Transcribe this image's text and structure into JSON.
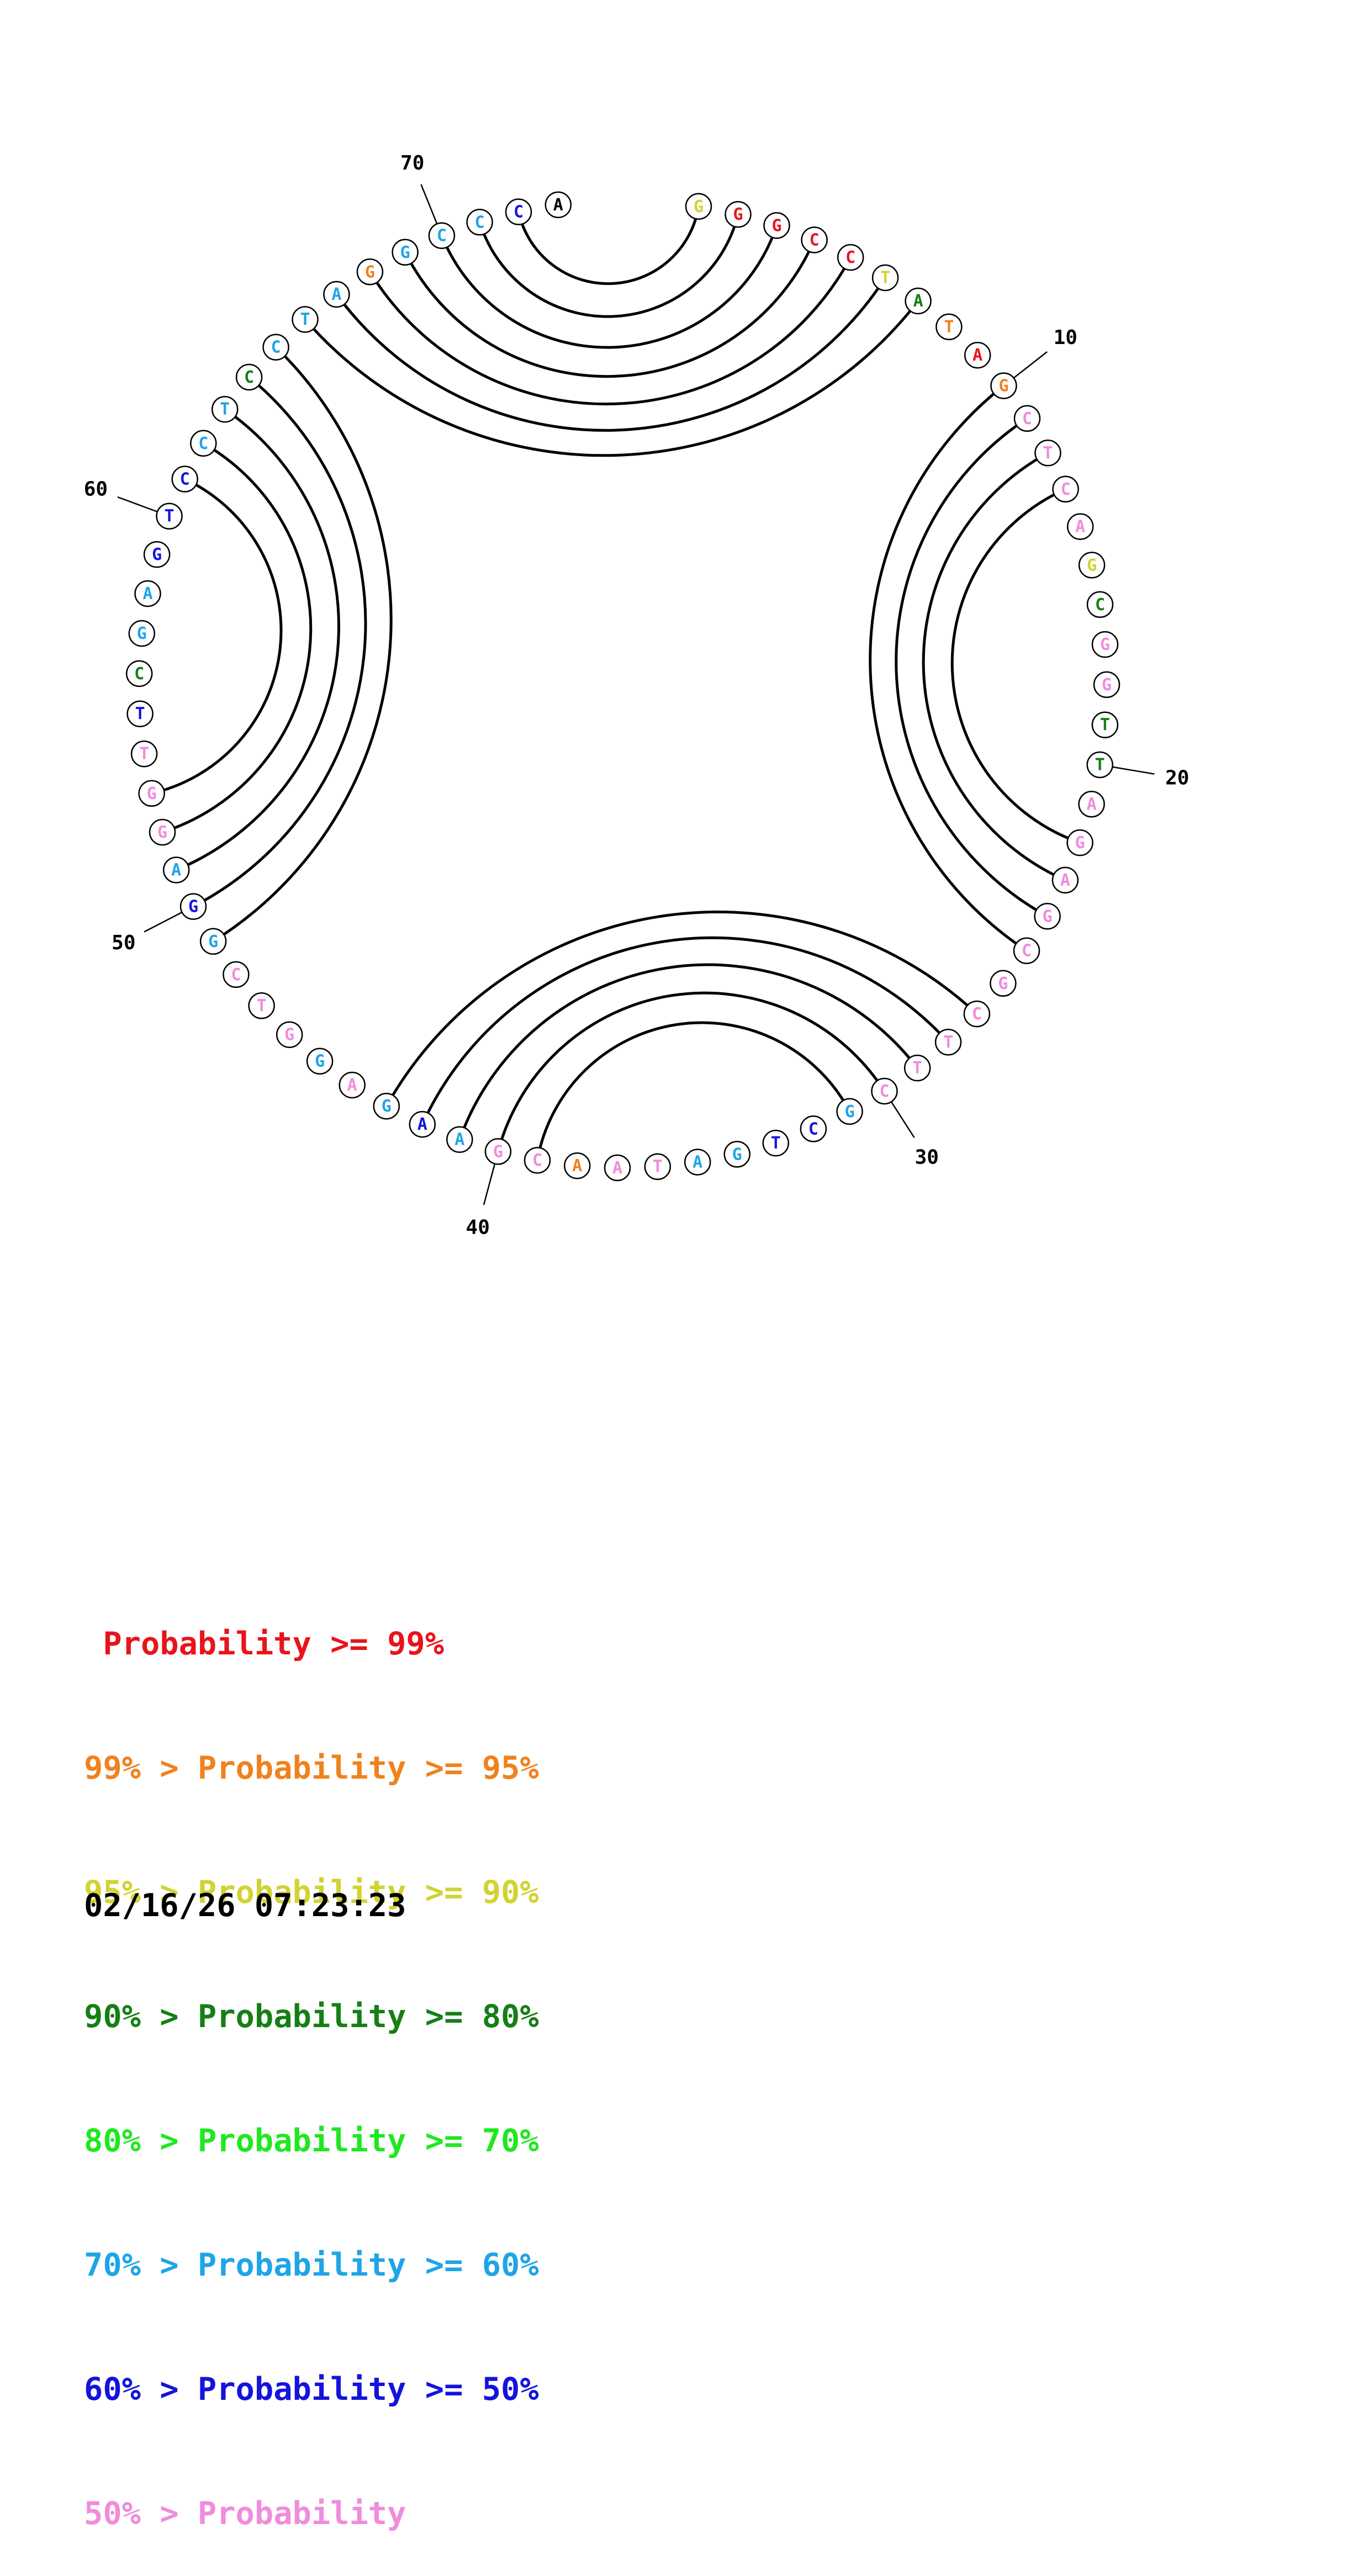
{
  "diagram": {
    "sequence": "GGGCCTATAGCTCAGCGGTTAGAGCGCTTCGCTGATAACGAAGAGGTCGGAGGTTCGAGTCCTCCTAGGCCCA",
    "probabilities": "YRRRRYGOROPPPPYGPPGGPPPPPPPPPPCTBCCPPOPPCBAPAPPPABCPPPBGCATTTCAGACCOCCCB",
    "pairs": [
      [
        1,
        72
      ],
      [
        2,
        71
      ],
      [
        3,
        70
      ],
      [
        4,
        69
      ],
      [
        5,
        68
      ],
      [
        6,
        67
      ],
      [
        7,
        66
      ],
      [
        10,
        25
      ],
      [
        11,
        24
      ],
      [
        12,
        23
      ],
      [
        13,
        22
      ],
      [
        27,
        43
      ],
      [
        28,
        42
      ],
      [
        29,
        41
      ],
      [
        30,
        40
      ],
      [
        31,
        39
      ],
      [
        49,
        65
      ],
      [
        50,
        64
      ],
      [
        51,
        63
      ],
      [
        52,
        62
      ],
      [
        53,
        61
      ]
    ],
    "number_labels": [
      {
        "index": 10,
        "text": "10"
      },
      {
        "index": 20,
        "text": "20"
      },
      {
        "index": 30,
        "text": "30"
      },
      {
        "index": 40,
        "text": "40"
      },
      {
        "index": 50,
        "text": "50"
      },
      {
        "index": 60,
        "text": "60"
      },
      {
        "index": 70,
        "text": "70"
      }
    ],
    "color_codes": {
      "R": "#e8141c",
      "O": "#f0821e",
      "Y": "#d2d232",
      "G": "#157f15",
      "L": "#1fe81f",
      "C": "#1ea5e6",
      "B": "#1414dc",
      "P": "#f08cdc",
      "A": "#1ea5e6",
      "T": "#1414dc"
    }
  },
  "legend": [
    {
      "prefix": "",
      "label": "Probability",
      "suffix": ">= 99%",
      "color": "#e8141c"
    },
    {
      "prefix": "99% >",
      "label": "Probability",
      "suffix": ">= 95%",
      "color": "#f0821e"
    },
    {
      "prefix": "95% >",
      "label": "Probability",
      "suffix": ">= 90%",
      "color": "#d2d232"
    },
    {
      "prefix": "90% >",
      "label": "Probability",
      "suffix": ">= 80%",
      "color": "#157f15"
    },
    {
      "prefix": "80% >",
      "label": "Probability",
      "suffix": ">= 70%",
      "color": "#1fe81f"
    },
    {
      "prefix": "70% >",
      "label": "Probability",
      "suffix": ">= 60%",
      "color": "#1ea5e6"
    },
    {
      "prefix": "60% >",
      "label": "Probability",
      "suffix": ">= 50%",
      "color": "#1414dc"
    },
    {
      "prefix": "50% >",
      "label": "Probability",
      "suffix": "",
      "color": "#f08cdc"
    }
  ],
  "timestamp": "02/16/26 07:23:23"
}
